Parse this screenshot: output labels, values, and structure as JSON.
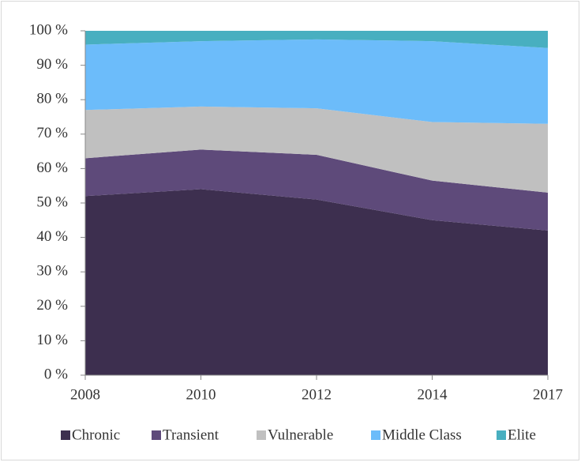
{
  "chart_data": {
    "type": "stacked_area",
    "categories": [
      "2008",
      "2010",
      "2012",
      "2014",
      "2017"
    ],
    "series": [
      {
        "name": "Chronic",
        "color": "#3d2f4f",
        "values": [
          52,
          54,
          51,
          45,
          42
        ]
      },
      {
        "name": "Transient",
        "color": "#5e4a7a",
        "values": [
          11,
          11.5,
          13,
          11.5,
          11
        ]
      },
      {
        "name": "Vulnerable",
        "color": "#c0c0c0",
        "values": [
          14,
          12.5,
          13.5,
          17,
          20
        ]
      },
      {
        "name": "Middle Class",
        "color": "#6cbcfa",
        "values": [
          19,
          19,
          20,
          23.5,
          22
        ]
      },
      {
        "name": "Elite",
        "color": "#48afc0",
        "values": [
          4,
          3,
          2.5,
          3,
          5
        ]
      }
    ],
    "ylim": [
      0,
      100
    ],
    "yticks": [
      {
        "value": 0,
        "label": "0 %"
      },
      {
        "value": 10,
        "label": "10 %"
      },
      {
        "value": 20,
        "label": "20 %"
      },
      {
        "value": 30,
        "label": "30 %"
      },
      {
        "value": 40,
        "label": "40 %"
      },
      {
        "value": 50,
        "label": "50 %"
      },
      {
        "value": 60,
        "label": "60 %"
      },
      {
        "value": 70,
        "label": "70 %"
      },
      {
        "value": 80,
        "label": "80 %"
      },
      {
        "value": 90,
        "label": "90 %"
      },
      {
        "value": 100,
        "label": "100 %"
      }
    ],
    "legend": "bottom"
  }
}
